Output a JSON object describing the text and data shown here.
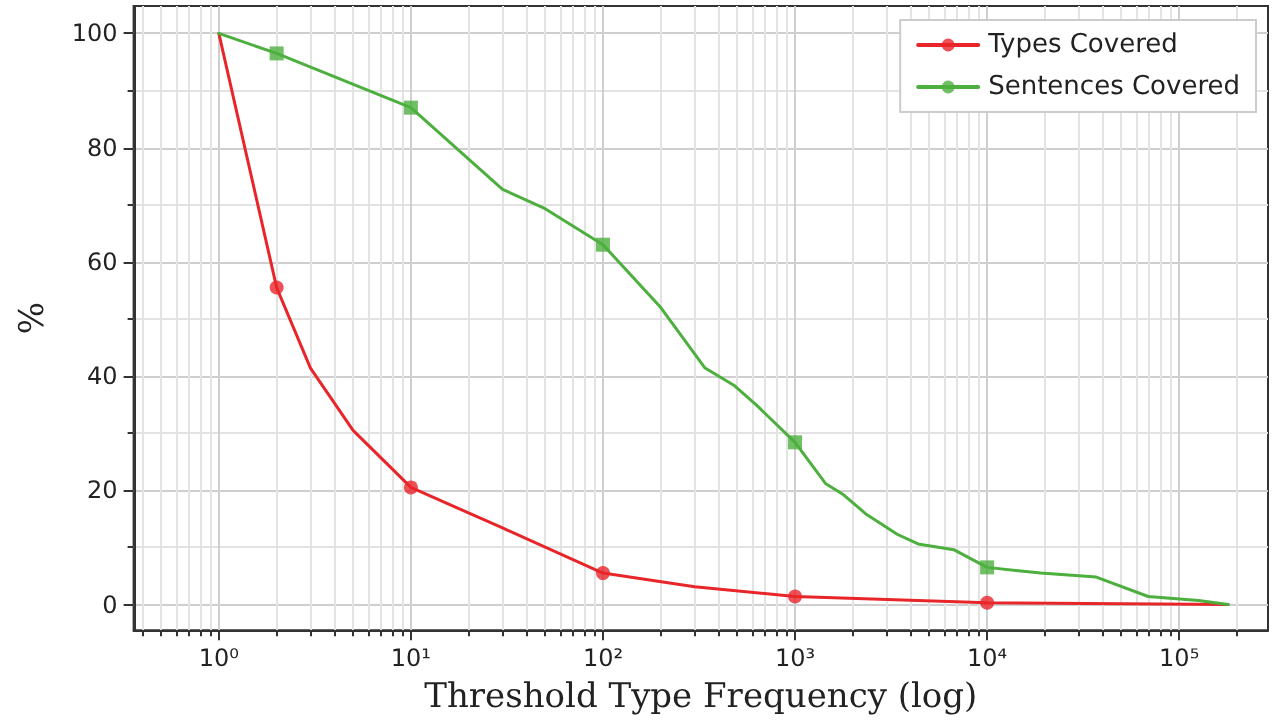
{
  "chart_data": {
    "type": "line",
    "xlabel": "Threshold Type Frequency (log)",
    "ylabel": "%",
    "log": "x",
    "grid": true,
    "legend": "top right",
    "marker": "none",
    "line_style": "solid",
    "xlim": [
      0.36,
      290000
    ],
    "ylim": [
      -4.5,
      104.8
    ],
    "xticks": [
      {
        "value": 1,
        "label": "10⁰"
      },
      {
        "value": 10,
        "label": "10¹"
      },
      {
        "value": 100,
        "label": "10²"
      },
      {
        "value": 1000,
        "label": "10³"
      },
      {
        "value": 10000,
        "label": "10⁴"
      },
      {
        "value": 100000,
        "label": "10⁵"
      }
    ],
    "yticks": [
      0,
      20,
      40,
      60,
      80,
      100
    ],
    "series": [
      {
        "name": "Types Covered",
        "color": "#e8262a",
        "x": [
          1,
          2,
          3,
          5,
          10,
          30,
          100,
          300,
          1000,
          10000,
          180000
        ],
        "values": [
          100,
          55.5,
          41.4,
          30.5,
          20.5,
          13.4,
          5.5,
          3.1,
          1.4,
          0.3,
          0
        ]
      },
      {
        "name": "Sentences Covered",
        "color": "#4caf3e",
        "x": [
          1,
          2,
          10,
          30,
          50,
          100,
          200,
          340,
          480,
          630,
          1000,
          1440,
          1790,
          2350,
          3400,
          4370,
          6700,
          10000,
          19000,
          37000,
          69000,
          126000,
          180000
        ],
        "values": [
          100,
          96.5,
          87,
          72.7,
          69.3,
          63,
          52,
          41.4,
          38.4,
          34.9,
          28.4,
          21.2,
          19.2,
          15.8,
          12.3,
          10.6,
          9.6,
          6.5,
          5.5,
          4.8,
          1.4,
          0.7,
          0
        ]
      },
      {
        "type": "scatter",
        "marker": "circle",
        "color": "#e8262a",
        "x": [
          2,
          10,
          100,
          1000,
          10000
        ],
        "values": [
          55.5,
          20.5,
          5.5,
          1.4,
          0.3
        ]
      },
      {
        "type": "scatter",
        "marker": "square",
        "color": "#4caf3e",
        "x": [
          2,
          10,
          100,
          1000,
          10000
        ],
        "values": [
          96.5,
          87,
          63,
          28.4,
          6.5
        ]
      }
    ]
  }
}
